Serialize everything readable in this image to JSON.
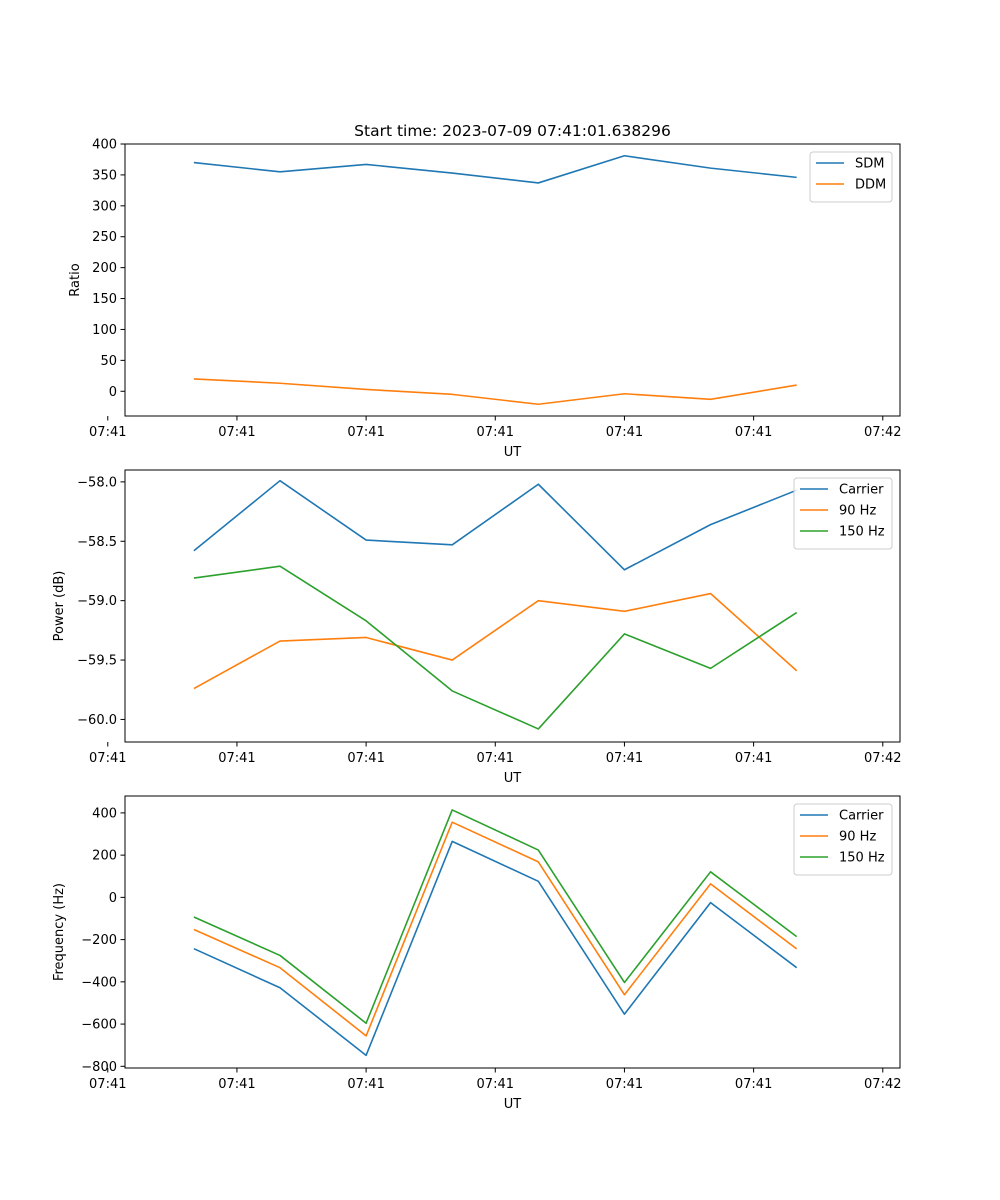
{
  "figure": {
    "title": "Start time: 2023-07-09 07:41:01.638296"
  },
  "colors": {
    "blue": "#1f77b4",
    "orange": "#ff7f0e",
    "green": "#2ca02c"
  },
  "chart_data": [
    {
      "type": "line",
      "title": "Start time: 2023-07-09 07:41:01.638296",
      "xlabel": "UT",
      "ylabel": "Ratio",
      "x": [
        1,
        2,
        3,
        4,
        5,
        6,
        7,
        8
      ],
      "xlim": [
        0.2,
        9.2
      ],
      "xticks": [
        0,
        1.5,
        3,
        4.5,
        6,
        7.5,
        9
      ],
      "xtick_labels": [
        "07:41",
        "07:41",
        "07:41",
        "07:41",
        "07:41",
        "07:41",
        "07:42"
      ],
      "ylim": [
        -40,
        400
      ],
      "yticks": [
        0,
        50,
        100,
        150,
        200,
        250,
        300,
        350,
        400
      ],
      "ytick_labels": [
        "0",
        "50",
        "100",
        "150",
        "200",
        "250",
        "300",
        "350",
        "400"
      ],
      "legend_position": "top-right",
      "series": [
        {
          "name": "SDM",
          "color": "#1f77b4",
          "values": [
            370,
            355,
            367,
            353,
            337,
            381,
            361,
            346
          ]
        },
        {
          "name": "DDM",
          "color": "#ff7f0e",
          "values": [
            20,
            13,
            3,
            -5,
            -21,
            -4,
            -13,
            10
          ]
        }
      ]
    },
    {
      "type": "line",
      "xlabel": "UT",
      "ylabel": "Power (dB)",
      "x": [
        1,
        2,
        3,
        4,
        5,
        6,
        7,
        8
      ],
      "xlim": [
        0.2,
        9.2
      ],
      "xticks": [
        0,
        1.5,
        3,
        4.5,
        6,
        7.5,
        9
      ],
      "xtick_labels": [
        "07:41",
        "07:41",
        "07:41",
        "07:41",
        "07:41",
        "07:41",
        "07:42"
      ],
      "ylim": [
        -60.19,
        -57.9
      ],
      "yticks": [
        -58.0,
        -58.5,
        -59.0,
        -59.5,
        -60.0
      ],
      "ytick_labels": [
        "−58.0",
        "−58.5",
        "−59.0",
        "−59.5",
        "−60.0"
      ],
      "legend_position": "top-right",
      "series": [
        {
          "name": "Carrier",
          "color": "#1f77b4",
          "values": [
            -58.58,
            -57.99,
            -58.49,
            -58.53,
            -58.02,
            -58.74,
            -58.36,
            -58.07
          ]
        },
        {
          "name": "90 Hz",
          "color": "#ff7f0e",
          "values": [
            -59.74,
            -59.34,
            -59.31,
            -59.5,
            -59.0,
            -59.09,
            -58.94,
            -59.59
          ]
        },
        {
          "name": "150 Hz",
          "color": "#2ca02c",
          "values": [
            -58.81,
            -58.71,
            -59.17,
            -59.76,
            -60.08,
            -59.28,
            -59.57,
            -59.1
          ]
        }
      ]
    },
    {
      "type": "line",
      "xlabel": "UT",
      "ylabel": "Frequency (Hz)",
      "x": [
        1,
        2,
        3,
        4,
        5,
        6,
        7,
        8
      ],
      "xlim": [
        0.2,
        9.2
      ],
      "xticks": [
        0,
        1.5,
        3,
        4.5,
        6,
        7.5,
        9
      ],
      "xtick_labels": [
        "07:41",
        "07:41",
        "07:41",
        "07:41",
        "07:41",
        "07:41",
        "07:42"
      ],
      "ylim": [
        -808,
        480
      ],
      "yticks": [
        400,
        200,
        0,
        -200,
        -400,
        -600,
        -800
      ],
      "ytick_labels": [
        "400",
        "200",
        "0",
        "−200",
        "−400",
        "−600",
        "−800"
      ],
      "legend_position": "top-right",
      "series": [
        {
          "name": "Carrier",
          "color": "#1f77b4",
          "values": [
            -243,
            -428,
            -748,
            265,
            76,
            -553,
            -25,
            -333
          ]
        },
        {
          "name": "90 Hz",
          "color": "#ff7f0e",
          "values": [
            -152,
            -333,
            -656,
            356,
            168,
            -461,
            64,
            -244
          ]
        },
        {
          "name": "150 Hz",
          "color": "#2ca02c",
          "values": [
            -93,
            -275,
            -596,
            414,
            224,
            -403,
            121,
            -186
          ]
        }
      ]
    }
  ]
}
